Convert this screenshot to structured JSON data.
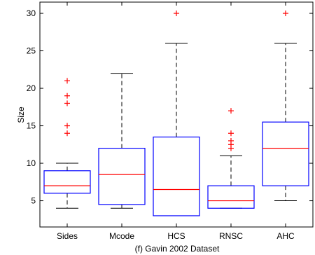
{
  "chart_data": {
    "type": "box",
    "title": "(f) Gavin 2002 Dataset",
    "xlabel": "",
    "ylabel": "Size",
    "ylim": [
      1.5,
      31.5
    ],
    "yticks": [
      5,
      10,
      15,
      20,
      25,
      30
    ],
    "grid": false,
    "colors": {
      "box": "#0000ff",
      "median": "#ff0000",
      "whisker": "#000000",
      "outlier": "#ff0000",
      "axis": "#000000"
    },
    "categories": [
      "Sides",
      "Mcode",
      "HCS",
      "RNSC",
      "AHC"
    ],
    "boxes": [
      {
        "label": "Sides",
        "q1": 6,
        "median": 7,
        "q3": 9,
        "whisker_low": 4,
        "whisker_high": 10,
        "outliers": [
          14,
          15,
          18,
          19,
          21
        ]
      },
      {
        "label": "Mcode",
        "q1": 4.5,
        "median": 8.5,
        "q3": 12,
        "whisker_low": 4,
        "whisker_high": 22,
        "outliers": []
      },
      {
        "label": "HCS",
        "q1": 3,
        "median": 6.5,
        "q3": 13.5,
        "whisker_low": 3,
        "whisker_high": 26,
        "outliers": [
          30
        ]
      },
      {
        "label": "RNSC",
        "q1": 4,
        "median": 5,
        "q3": 7,
        "whisker_low": 4,
        "whisker_high": 11,
        "outliers": [
          12,
          12.5,
          13,
          14,
          17
        ]
      },
      {
        "label": "AHC",
        "q1": 7,
        "median": 12,
        "q3": 15.5,
        "whisker_low": 5,
        "whisker_high": 26,
        "outliers": [
          30
        ]
      }
    ]
  }
}
